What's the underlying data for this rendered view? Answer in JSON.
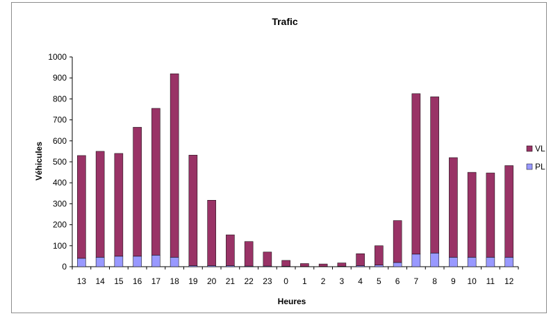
{
  "chart_data": {
    "type": "bar",
    "stacked": true,
    "title": "Trafic",
    "xlabel": "Heures",
    "ylabel": "Véhicules",
    "ylim": [
      0,
      1000
    ],
    "yticks": [
      0,
      100,
      200,
      300,
      400,
      500,
      600,
      700,
      800,
      900,
      1000
    ],
    "grid": false,
    "legend_position": "right",
    "categories": [
      "13",
      "14",
      "15",
      "16",
      "17",
      "18",
      "19",
      "20",
      "21",
      "22",
      "23",
      "0",
      "1",
      "2",
      "3",
      "4",
      "5",
      "6",
      "7",
      "8",
      "9",
      "10",
      "11",
      "12"
    ],
    "series": [
      {
        "name": "PL",
        "color": "#9999ff",
        "values": [
          40,
          45,
          50,
          50,
          55,
          45,
          5,
          5,
          5,
          3,
          3,
          2,
          1,
          1,
          2,
          5,
          8,
          20,
          60,
          65,
          45,
          45,
          45,
          45
        ]
      },
      {
        "name": "VL",
        "color": "#993366",
        "values": [
          490,
          505,
          490,
          615,
          700,
          875,
          527,
          312,
          147,
          117,
          67,
          28,
          14,
          12,
          16,
          57,
          92,
          200,
          765,
          745,
          475,
          405,
          402,
          437
        ]
      }
    ]
  },
  "colors": {
    "plot_background": "#ffffff",
    "frame_border": "#8c8c8c",
    "bar_outline": "#000000"
  }
}
